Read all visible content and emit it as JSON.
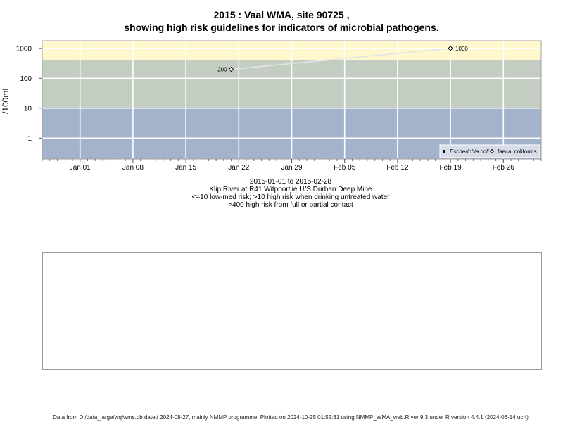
{
  "titles": {
    "line1": "2015 : Vaal WMA, site 90725 ,",
    "line2": "showing high risk guidelines for indicators of microbial pathogens."
  },
  "subtitles": {
    "date_range": "2015-01-01 to 2015-02-28",
    "site_name": "Klip River at R41 Witpoortjie U/S Durban Deep Mine",
    "risk_low": "<=10 low-med risk; >10 high risk when drinking untreated water",
    "risk_high": ">400 high risk from full or partial contact"
  },
  "footer": "Data from D:/data_large/wq/wms.db dated 2024-08-27, mainly NMMP programme. Plotted on 2024-10-25 01:52:31 using NMMP_WMA_web.R ver 9.3 under R version 4.4.1 (2024-06-14 ucrt)",
  "chart_data": {
    "type": "line",
    "ylabel": "/100mL",
    "y_scale": "log",
    "ylim": [
      0.2,
      1800
    ],
    "y_ticks": [
      1,
      10,
      100,
      1000
    ],
    "y_tick_labels": [
      "1",
      "10",
      "100",
      "1000"
    ],
    "xlim": [
      "2014-12-27",
      "2015-03-03"
    ],
    "x_ticks": [
      "2015-01-01",
      "2015-01-08",
      "2015-01-15",
      "2015-01-22",
      "2015-01-29",
      "2015-02-05",
      "2015-02-12",
      "2015-02-19",
      "2015-02-26"
    ],
    "x_tick_labels": [
      "Jan 01",
      "Jan 08",
      "Jan 15",
      "Jan 22",
      "Jan 29",
      "Feb 05",
      "Feb 12",
      "Feb 19",
      "Feb 26"
    ],
    "grid": true,
    "bands": [
      {
        "from": 0.2,
        "to": 10,
        "color": "#a3b3cc"
      },
      {
        "from": 10,
        "to": 400,
        "color": "#c3cdc2"
      },
      {
        "from": 400,
        "to": 1800,
        "color": "#fff8cc"
      }
    ],
    "series": [
      {
        "name": "Escherichia coli",
        "marker": "filled-dot",
        "x": [],
        "y": []
      },
      {
        "name": "faecal coliforms",
        "marker": "open-diamond",
        "x": [
          "2015-01-21",
          "2015-02-19"
        ],
        "y": [
          200,
          1000
        ],
        "labels": [
          "200",
          "1000"
        ]
      }
    ],
    "legend_position": "bottom-right"
  }
}
